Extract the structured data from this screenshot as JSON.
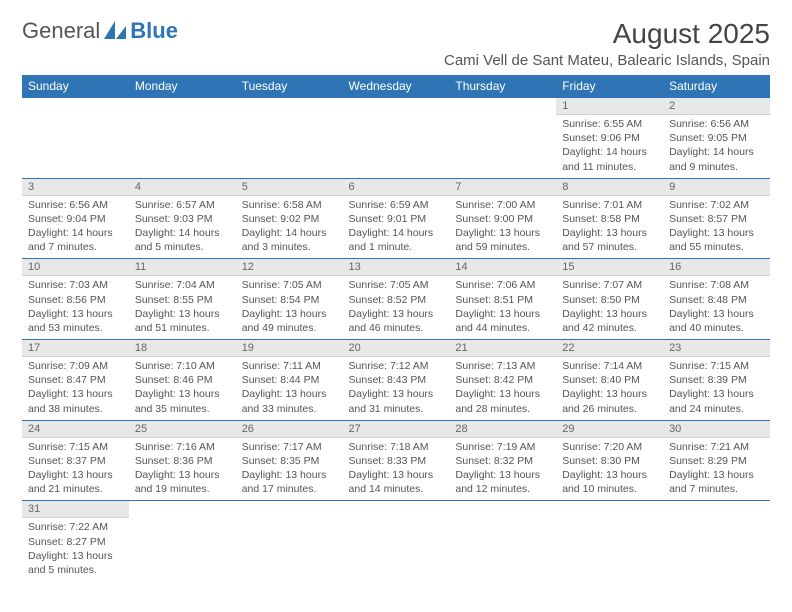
{
  "logo": {
    "text1": "General",
    "text2": "Blue"
  },
  "title": "August 2025",
  "location": "Cami Vell de Sant Mateu, Balearic Islands, Spain",
  "colors": {
    "header_bg": "#2f75b5",
    "header_text": "#ffffff",
    "daynum_bg": "#e8e8e8",
    "border": "#2f75b5",
    "body_text": "#555555"
  },
  "weekdays": [
    "Sunday",
    "Monday",
    "Tuesday",
    "Wednesday",
    "Thursday",
    "Friday",
    "Saturday"
  ],
  "weeks": [
    [
      null,
      null,
      null,
      null,
      null,
      {
        "n": "1",
        "sr": "Sunrise: 6:55 AM",
        "ss": "Sunset: 9:06 PM",
        "d1": "Daylight: 14 hours",
        "d2": "and 11 minutes."
      },
      {
        "n": "2",
        "sr": "Sunrise: 6:56 AM",
        "ss": "Sunset: 9:05 PM",
        "d1": "Daylight: 14 hours",
        "d2": "and 9 minutes."
      }
    ],
    [
      {
        "n": "3",
        "sr": "Sunrise: 6:56 AM",
        "ss": "Sunset: 9:04 PM",
        "d1": "Daylight: 14 hours",
        "d2": "and 7 minutes."
      },
      {
        "n": "4",
        "sr": "Sunrise: 6:57 AM",
        "ss": "Sunset: 9:03 PM",
        "d1": "Daylight: 14 hours",
        "d2": "and 5 minutes."
      },
      {
        "n": "5",
        "sr": "Sunrise: 6:58 AM",
        "ss": "Sunset: 9:02 PM",
        "d1": "Daylight: 14 hours",
        "d2": "and 3 minutes."
      },
      {
        "n": "6",
        "sr": "Sunrise: 6:59 AM",
        "ss": "Sunset: 9:01 PM",
        "d1": "Daylight: 14 hours",
        "d2": "and 1 minute."
      },
      {
        "n": "7",
        "sr": "Sunrise: 7:00 AM",
        "ss": "Sunset: 9:00 PM",
        "d1": "Daylight: 13 hours",
        "d2": "and 59 minutes."
      },
      {
        "n": "8",
        "sr": "Sunrise: 7:01 AM",
        "ss": "Sunset: 8:58 PM",
        "d1": "Daylight: 13 hours",
        "d2": "and 57 minutes."
      },
      {
        "n": "9",
        "sr": "Sunrise: 7:02 AM",
        "ss": "Sunset: 8:57 PM",
        "d1": "Daylight: 13 hours",
        "d2": "and 55 minutes."
      }
    ],
    [
      {
        "n": "10",
        "sr": "Sunrise: 7:03 AM",
        "ss": "Sunset: 8:56 PM",
        "d1": "Daylight: 13 hours",
        "d2": "and 53 minutes."
      },
      {
        "n": "11",
        "sr": "Sunrise: 7:04 AM",
        "ss": "Sunset: 8:55 PM",
        "d1": "Daylight: 13 hours",
        "d2": "and 51 minutes."
      },
      {
        "n": "12",
        "sr": "Sunrise: 7:05 AM",
        "ss": "Sunset: 8:54 PM",
        "d1": "Daylight: 13 hours",
        "d2": "and 49 minutes."
      },
      {
        "n": "13",
        "sr": "Sunrise: 7:05 AM",
        "ss": "Sunset: 8:52 PM",
        "d1": "Daylight: 13 hours",
        "d2": "and 46 minutes."
      },
      {
        "n": "14",
        "sr": "Sunrise: 7:06 AM",
        "ss": "Sunset: 8:51 PM",
        "d1": "Daylight: 13 hours",
        "d2": "and 44 minutes."
      },
      {
        "n": "15",
        "sr": "Sunrise: 7:07 AM",
        "ss": "Sunset: 8:50 PM",
        "d1": "Daylight: 13 hours",
        "d2": "and 42 minutes."
      },
      {
        "n": "16",
        "sr": "Sunrise: 7:08 AM",
        "ss": "Sunset: 8:48 PM",
        "d1": "Daylight: 13 hours",
        "d2": "and 40 minutes."
      }
    ],
    [
      {
        "n": "17",
        "sr": "Sunrise: 7:09 AM",
        "ss": "Sunset: 8:47 PM",
        "d1": "Daylight: 13 hours",
        "d2": "and 38 minutes."
      },
      {
        "n": "18",
        "sr": "Sunrise: 7:10 AM",
        "ss": "Sunset: 8:46 PM",
        "d1": "Daylight: 13 hours",
        "d2": "and 35 minutes."
      },
      {
        "n": "19",
        "sr": "Sunrise: 7:11 AM",
        "ss": "Sunset: 8:44 PM",
        "d1": "Daylight: 13 hours",
        "d2": "and 33 minutes."
      },
      {
        "n": "20",
        "sr": "Sunrise: 7:12 AM",
        "ss": "Sunset: 8:43 PM",
        "d1": "Daylight: 13 hours",
        "d2": "and 31 minutes."
      },
      {
        "n": "21",
        "sr": "Sunrise: 7:13 AM",
        "ss": "Sunset: 8:42 PM",
        "d1": "Daylight: 13 hours",
        "d2": "and 28 minutes."
      },
      {
        "n": "22",
        "sr": "Sunrise: 7:14 AM",
        "ss": "Sunset: 8:40 PM",
        "d1": "Daylight: 13 hours",
        "d2": "and 26 minutes."
      },
      {
        "n": "23",
        "sr": "Sunrise: 7:15 AM",
        "ss": "Sunset: 8:39 PM",
        "d1": "Daylight: 13 hours",
        "d2": "and 24 minutes."
      }
    ],
    [
      {
        "n": "24",
        "sr": "Sunrise: 7:15 AM",
        "ss": "Sunset: 8:37 PM",
        "d1": "Daylight: 13 hours",
        "d2": "and 21 minutes."
      },
      {
        "n": "25",
        "sr": "Sunrise: 7:16 AM",
        "ss": "Sunset: 8:36 PM",
        "d1": "Daylight: 13 hours",
        "d2": "and 19 minutes."
      },
      {
        "n": "26",
        "sr": "Sunrise: 7:17 AM",
        "ss": "Sunset: 8:35 PM",
        "d1": "Daylight: 13 hours",
        "d2": "and 17 minutes."
      },
      {
        "n": "27",
        "sr": "Sunrise: 7:18 AM",
        "ss": "Sunset: 8:33 PM",
        "d1": "Daylight: 13 hours",
        "d2": "and 14 minutes."
      },
      {
        "n": "28",
        "sr": "Sunrise: 7:19 AM",
        "ss": "Sunset: 8:32 PM",
        "d1": "Daylight: 13 hours",
        "d2": "and 12 minutes."
      },
      {
        "n": "29",
        "sr": "Sunrise: 7:20 AM",
        "ss": "Sunset: 8:30 PM",
        "d1": "Daylight: 13 hours",
        "d2": "and 10 minutes."
      },
      {
        "n": "30",
        "sr": "Sunrise: 7:21 AM",
        "ss": "Sunset: 8:29 PM",
        "d1": "Daylight: 13 hours",
        "d2": "and 7 minutes."
      }
    ],
    [
      {
        "n": "31",
        "sr": "Sunrise: 7:22 AM",
        "ss": "Sunset: 8:27 PM",
        "d1": "Daylight: 13 hours",
        "d2": "and 5 minutes."
      },
      null,
      null,
      null,
      null,
      null,
      null
    ]
  ]
}
